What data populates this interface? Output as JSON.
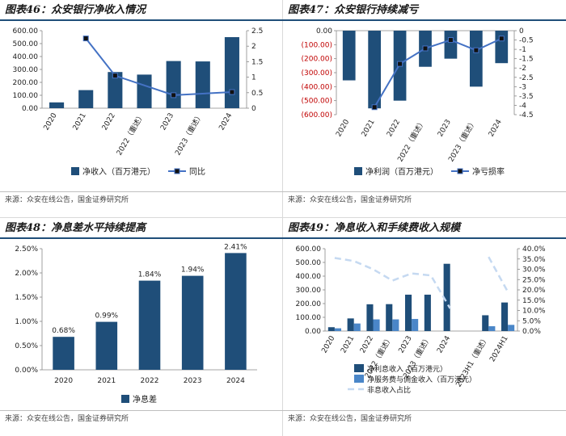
{
  "panels": {
    "p46": {
      "title": "图表46：众安银行净收入情况",
      "source": "来源：众安在线公告，国金证券研究所"
    },
    "p47": {
      "title": "图表47：众安银行持续减亏",
      "source": "来源：众安在线公告，国金证券研究所"
    },
    "p48": {
      "title": "图表48：净息差水平持续提高",
      "source": "来源：众安在线公告，国金证券研究所"
    },
    "p49": {
      "title": "图表49：净息收入和手续费收入规模",
      "source": "来源：众安在线公告，国金证券研究所"
    }
  },
  "chart_data": [
    {
      "id": "c46",
      "type": "bar",
      "categories": [
        "2020",
        "2021",
        "2022",
        "2022（重述）",
        "2023",
        "2023（重述）",
        "2024"
      ],
      "series": [
        {
          "name": "净收入（百万港元）",
          "kind": "bar",
          "axis": "left",
          "color": "#1f4e79",
          "values": [
            45,
            140,
            280,
            260,
            365,
            362,
            550
          ]
        },
        {
          "name": "同比",
          "kind": "line",
          "axis": "right",
          "color": "#4472c4",
          "values": [
            null,
            2.25,
            1.05,
            null,
            0.42,
            null,
            0.52
          ]
        }
      ],
      "ylim": [
        0,
        600
      ],
      "yticks": [
        0,
        100,
        200,
        300,
        400,
        500,
        600
      ],
      "ytick_format": "fixed2",
      "y2lim": [
        0,
        2.5
      ],
      "y2ticks": [
        0,
        0.5,
        1,
        1.5,
        2,
        2.5
      ],
      "y2tick_labels": [
        "0",
        "0.5",
        "1",
        "1.5",
        "2",
        "2.5"
      ],
      "legend": "bottom"
    },
    {
      "id": "c47",
      "type": "bar",
      "categories": [
        "2020",
        "2021",
        "2022",
        "2022（重述）",
        "2023",
        "2023（重述）",
        "2024"
      ],
      "series": [
        {
          "name": "净利润（百万港元）",
          "kind": "bar",
          "axis": "left",
          "color": "#1f4e79",
          "values": [
            -355,
            -555,
            -500,
            -258,
            -200,
            -400,
            -232
          ]
        },
        {
          "name": "净亏损率",
          "kind": "line",
          "axis": "right",
          "color": "#4472c4",
          "values": [
            null,
            -4.1,
            -1.78,
            -0.95,
            -0.5,
            -1.05,
            -0.42
          ]
        }
      ],
      "ylim": [
        -600,
        0
      ],
      "yticks": [
        0,
        -100,
        -200,
        -300,
        -400,
        -500,
        -600
      ],
      "ytick_format": "neg_paren",
      "y2lim": [
        -4.5,
        0
      ],
      "y2ticks": [
        0,
        -0.5,
        -1,
        -1.5,
        -2,
        -2.5,
        -3,
        -3.5,
        -4,
        -4.5
      ],
      "y2tick_labels": [
        "0",
        "-0.5",
        "-1",
        "-1.5",
        "-2",
        "-2.5",
        "-3",
        "-3.5",
        "-4",
        "-4.5"
      ],
      "legend": "bottom"
    },
    {
      "id": "c48",
      "type": "bar",
      "categories": [
        "2020",
        "2021",
        "2022",
        "2023",
        "2024"
      ],
      "series": [
        {
          "name": "净息差",
          "kind": "bar",
          "axis": "left",
          "color": "#1f4e79",
          "values": [
            0.68,
            0.99,
            1.84,
            1.94,
            2.41
          ],
          "labels": [
            "0.68%",
            "0.99%",
            "1.84%",
            "1.94%",
            "2.41%"
          ]
        }
      ],
      "ylim": [
        0,
        2.5
      ],
      "yticks": [
        0,
        0.5,
        1.0,
        1.5,
        2.0,
        2.5
      ],
      "ytick_labels": [
        "0.00%",
        "0.50%",
        "1.00%",
        "1.50%",
        "2.00%",
        "2.50%"
      ],
      "legend": "bottom"
    },
    {
      "id": "c49",
      "type": "bar",
      "categories": [
        "2020",
        "2021",
        "2022",
        "2022（重述）",
        "2023",
        "2023（重述）",
        "2024",
        "",
        "2023H1（重述）",
        "2024H1"
      ],
      "series": [
        {
          "name": "净利息收入（百万港元）",
          "kind": "bar",
          "axis": "left",
          "color": "#1f4e79",
          "values": [
            28,
            92,
            195,
            196,
            265,
            265,
            490,
            null,
            115,
            208
          ]
        },
        {
          "name": "净服务费与佣金收入（百万港元）",
          "kind": "bar",
          "axis": "left",
          "color": "#4a86c8",
          "values": [
            20,
            55,
            85,
            85,
            88,
            null,
            null,
            null,
            35,
            45
          ]
        },
        {
          "name": "非息收入占比",
          "kind": "dash",
          "axis": "right",
          "color": "#c5d9f1",
          "values": [
            0.355,
            0.34,
            0.3,
            0.245,
            0.28,
            0.27,
            0.11,
            null,
            0.36,
            0.19
          ]
        }
      ],
      "ylim": [
        0,
        600
      ],
      "yticks": [
        0,
        100,
        200,
        300,
        400,
        500,
        600
      ],
      "ytick_format": "fixed2",
      "y2lim": [
        0,
        0.4
      ],
      "y2ticks": [
        0,
        0.05,
        0.1,
        0.15,
        0.2,
        0.25,
        0.3,
        0.35,
        0.4
      ],
      "y2tick_labels": [
        "0.0%",
        "5.0%",
        "10.0%",
        "15.0%",
        "20.0%",
        "25.0%",
        "30.0%",
        "35.0%",
        "40.0%"
      ],
      "legend": "bottom"
    }
  ]
}
